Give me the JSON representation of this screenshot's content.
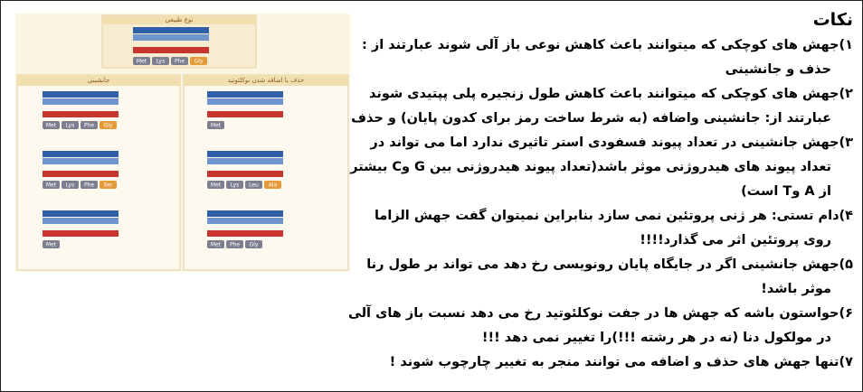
{
  "title": "نکات",
  "notes": [
    "۱)جهش های کوچکی که میتوانند باعث کاهش نوعی باز آلی شوند عبارتند از : حذف و جانشینی",
    "۲)جهش های کوچکی که میتوانند باعث کاهش طول زنجیره پلی پپتیدی شوند عبارتند از: جانشینی واضافه (به شرط ساخت رمز برای کدون پایان) و حذف",
    "۳)جهش جانشینی در تعداد پیوند فسفودی استر تاثیری ندارد اما می تواند در تعداد پیوند های هیدروژنی موثر باشد(تعداد پیوند هیدروژنی بین G وC بیشتر از A وT است)",
    "۴)دام تستی: هر ژنی پروتئین نمی سازد بنابراین نمیتوان گفت جهش الزاما روی پروتئین اثر می گذارد!!!!",
    "۵)جهش جانشینی اگر در جایگاه پایان رونویسی رخ دهد می تواند بر طول رنا موثر باشد!",
    "۶)حواستون باشه که جهش ها در جفت نوکلئوتید رخ می دهد نسبت باز های آلی در مولکول دنا (نه در هر رشته !!!)را تغییر نمی دهد !!!",
    "۷)تنها جهش های حذف و اضافه می توانند منجر به تغییر چارچوب شوند !"
  ],
  "figure": {
    "normal": {
      "title": "نوع طبیعی",
      "rows": [
        [
          "Met",
          "Lys",
          "Phe",
          "Gly"
        ]
      ]
    },
    "substitution": {
      "title": "جانشینی",
      "rows": [
        [
          "Met",
          "Lys",
          "Phe",
          "Gly"
        ],
        [
          "Met",
          "Lys",
          "Phe",
          "Ser"
        ],
        [
          "Met"
        ]
      ]
    },
    "frameshift": {
      "title": "حذف یا اضافه شدن نوکلئوتید",
      "rows": [
        [
          "Met"
        ],
        [
          "Met",
          "Lys",
          "Leu",
          "Ala"
        ],
        [
          "Met",
          "Phe",
          "Gly"
        ]
      ]
    }
  }
}
